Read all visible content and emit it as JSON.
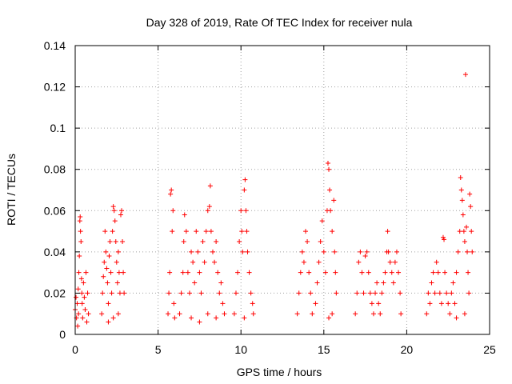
{
  "chart_data": {
    "type": "scatter",
    "title": "Day 328 of 2019, Rate Of TEC Index for receiver nula",
    "xlabel": "GPS time / hours",
    "ylabel": "ROTI / TECUs",
    "xlim": [
      0,
      25
    ],
    "ylim": [
      0,
      0.14
    ],
    "xticks": [
      0,
      5,
      10,
      15,
      20,
      25
    ],
    "xtick_labels": [
      "0",
      "5",
      "10",
      "15",
      "20",
      "25"
    ],
    "yticks": [
      0,
      0.02,
      0.04,
      0.06,
      0.08,
      0.1,
      0.12,
      0.14
    ],
    "ytick_labels": [
      "0",
      "0.02",
      "0.04",
      "0.06",
      "0.08",
      "0.1",
      "0.12",
      "0.14"
    ],
    "grid": true,
    "marker": "+",
    "color": "#ff0000",
    "series": [
      {
        "points": [
          [
            0.0,
            0.012
          ],
          [
            0.05,
            0.018
          ],
          [
            0.08,
            0.008
          ],
          [
            0.12,
            0.015
          ],
          [
            0.15,
            0.004
          ],
          [
            0.18,
            0.022
          ],
          [
            0.2,
            0.01
          ],
          [
            0.22,
            0.03
          ],
          [
            0.25,
            0.038
          ],
          [
            0.28,
            0.055
          ],
          [
            0.3,
            0.057
          ],
          [
            0.32,
            0.05
          ],
          [
            0.35,
            0.045
          ],
          [
            0.38,
            0.027
          ],
          [
            0.4,
            0.02
          ],
          [
            0.42,
            0.015
          ],
          [
            0.45,
            0.008
          ],
          [
            0.5,
            0.025
          ],
          [
            0.55,
            0.018
          ],
          [
            0.6,
            0.012
          ],
          [
            0.65,
            0.03
          ],
          [
            0.7,
            0.006
          ],
          [
            0.75,
            0.02
          ],
          [
            0.8,
            0.01
          ],
          [
            1.6,
            0.01
          ],
          [
            1.65,
            0.02
          ],
          [
            1.7,
            0.028
          ],
          [
            1.75,
            0.035
          ],
          [
            1.8,
            0.05
          ],
          [
            1.85,
            0.04
          ],
          [
            1.9,
            0.032
          ],
          [
            1.95,
            0.025
          ],
          [
            2.0,
            0.015
          ],
          [
            2.05,
            0.038
          ],
          [
            2.1,
            0.045
          ],
          [
            2.15,
            0.03
          ],
          [
            2.2,
            0.02
          ],
          [
            2.25,
            0.05
          ],
          [
            2.3,
            0.062
          ],
          [
            2.35,
            0.06
          ],
          [
            2.4,
            0.055
          ],
          [
            2.45,
            0.045
          ],
          [
            2.5,
            0.035
          ],
          [
            2.55,
            0.025
          ],
          [
            2.6,
            0.04
          ],
          [
            2.65,
            0.03
          ],
          [
            2.7,
            0.02
          ],
          [
            2.75,
            0.058
          ],
          [
            2.8,
            0.06
          ],
          [
            2.85,
            0.045
          ],
          [
            2.9,
            0.03
          ],
          [
            2.95,
            0.02
          ],
          [
            2.0,
            0.006
          ],
          [
            2.3,
            0.008
          ],
          [
            2.6,
            0.01
          ],
          [
            5.6,
            0.01
          ],
          [
            5.65,
            0.02
          ],
          [
            5.7,
            0.03
          ],
          [
            5.75,
            0.068
          ],
          [
            5.8,
            0.07
          ],
          [
            5.85,
            0.05
          ],
          [
            5.9,
            0.06
          ],
          [
            5.95,
            0.015
          ],
          [
            6.0,
            0.008
          ],
          [
            6.3,
            0.01
          ],
          [
            6.4,
            0.02
          ],
          [
            6.5,
            0.03
          ],
          [
            6.55,
            0.045
          ],
          [
            6.6,
            0.058
          ],
          [
            6.7,
            0.05
          ],
          [
            6.8,
            0.03
          ],
          [
            6.9,
            0.02
          ],
          [
            7.0,
            0.04
          ],
          [
            7.1,
            0.035
          ],
          [
            7.2,
            0.025
          ],
          [
            7.3,
            0.05
          ],
          [
            7.4,
            0.04
          ],
          [
            7.5,
            0.03
          ],
          [
            7.6,
            0.02
          ],
          [
            7.7,
            0.045
          ],
          [
            7.8,
            0.035
          ],
          [
            7.9,
            0.05
          ],
          [
            8.0,
            0.06
          ],
          [
            8.1,
            0.062
          ],
          [
            8.15,
            0.072
          ],
          [
            8.2,
            0.05
          ],
          [
            8.3,
            0.04
          ],
          [
            8.4,
            0.035
          ],
          [
            8.5,
            0.045
          ],
          [
            8.6,
            0.03
          ],
          [
            8.7,
            0.02
          ],
          [
            8.8,
            0.025
          ],
          [
            8.9,
            0.015
          ],
          [
            9.0,
            0.01
          ],
          [
            7.0,
            0.008
          ],
          [
            7.5,
            0.006
          ],
          [
            8.0,
            0.01
          ],
          [
            8.5,
            0.008
          ],
          [
            9.6,
            0.01
          ],
          [
            9.7,
            0.02
          ],
          [
            9.8,
            0.03
          ],
          [
            9.9,
            0.045
          ],
          [
            10.0,
            0.06
          ],
          [
            10.05,
            0.05
          ],
          [
            10.1,
            0.04
          ],
          [
            10.2,
            0.07
          ],
          [
            10.25,
            0.075
          ],
          [
            10.3,
            0.06
          ],
          [
            10.35,
            0.05
          ],
          [
            10.4,
            0.04
          ],
          [
            10.5,
            0.03
          ],
          [
            10.6,
            0.02
          ],
          [
            10.7,
            0.015
          ],
          [
            10.75,
            0.01
          ],
          [
            10.2,
            0.008
          ],
          [
            13.4,
            0.01
          ],
          [
            13.5,
            0.02
          ],
          [
            13.6,
            0.03
          ],
          [
            13.7,
            0.04
          ],
          [
            13.8,
            0.035
          ],
          [
            13.9,
            0.05
          ],
          [
            14.0,
            0.045
          ],
          [
            14.1,
            0.03
          ],
          [
            14.2,
            0.02
          ],
          [
            14.3,
            0.01
          ],
          [
            14.5,
            0.015
          ],
          [
            14.6,
            0.025
          ],
          [
            14.7,
            0.035
          ],
          [
            14.8,
            0.045
          ],
          [
            14.9,
            0.055
          ],
          [
            15.0,
            0.04
          ],
          [
            15.1,
            0.03
          ],
          [
            15.2,
            0.06
          ],
          [
            15.25,
            0.083
          ],
          [
            15.3,
            0.08
          ],
          [
            15.35,
            0.07
          ],
          [
            15.4,
            0.06
          ],
          [
            15.5,
            0.05
          ],
          [
            15.6,
            0.065
          ],
          [
            15.65,
            0.04
          ],
          [
            15.7,
            0.03
          ],
          [
            15.75,
            0.02
          ],
          [
            15.3,
            0.008
          ],
          [
            15.5,
            0.01
          ],
          [
            16.9,
            0.01
          ],
          [
            17.0,
            0.02
          ],
          [
            17.1,
            0.035
          ],
          [
            17.2,
            0.04
          ],
          [
            17.3,
            0.03
          ],
          [
            17.4,
            0.02
          ],
          [
            17.5,
            0.038
          ],
          [
            17.6,
            0.04
          ],
          [
            17.7,
            0.03
          ],
          [
            17.8,
            0.02
          ],
          [
            17.9,
            0.015
          ],
          [
            18.0,
            0.01
          ],
          [
            18.1,
            0.02
          ],
          [
            18.2,
            0.025
          ],
          [
            18.3,
            0.015
          ],
          [
            18.4,
            0.01
          ],
          [
            18.5,
            0.02
          ],
          [
            18.6,
            0.025
          ],
          [
            18.7,
            0.03
          ],
          [
            18.8,
            0.04
          ],
          [
            18.85,
            0.05
          ],
          [
            18.9,
            0.04
          ],
          [
            19.0,
            0.035
          ],
          [
            19.1,
            0.03
          ],
          [
            19.2,
            0.025
          ],
          [
            19.3,
            0.035
          ],
          [
            19.4,
            0.04
          ],
          [
            19.5,
            0.03
          ],
          [
            19.6,
            0.02
          ],
          [
            19.65,
            0.01
          ],
          [
            21.2,
            0.01
          ],
          [
            21.3,
            0.02
          ],
          [
            21.4,
            0.015
          ],
          [
            21.5,
            0.025
          ],
          [
            21.6,
            0.03
          ],
          [
            21.7,
            0.02
          ],
          [
            21.8,
            0.035
          ],
          [
            21.9,
            0.03
          ],
          [
            22.0,
            0.02
          ],
          [
            22.1,
            0.015
          ],
          [
            22.2,
            0.047
          ],
          [
            22.25,
            0.046
          ],
          [
            22.3,
            0.03
          ],
          [
            22.4,
            0.02
          ],
          [
            22.5,
            0.015
          ],
          [
            22.6,
            0.01
          ],
          [
            22.7,
            0.02
          ],
          [
            22.8,
            0.025
          ],
          [
            22.9,
            0.015
          ],
          [
            23.0,
            0.03
          ],
          [
            23.1,
            0.04
          ],
          [
            23.2,
            0.05
          ],
          [
            23.25,
            0.076
          ],
          [
            23.3,
            0.07
          ],
          [
            23.35,
            0.065
          ],
          [
            23.4,
            0.058
          ],
          [
            23.45,
            0.05
          ],
          [
            23.5,
            0.045
          ],
          [
            23.55,
            0.126
          ],
          [
            23.6,
            0.052
          ],
          [
            23.65,
            0.04
          ],
          [
            23.7,
            0.03
          ],
          [
            23.75,
            0.02
          ],
          [
            23.8,
            0.068
          ],
          [
            23.85,
            0.062
          ],
          [
            23.9,
            0.05
          ],
          [
            23.95,
            0.04
          ],
          [
            23.0,
            0.008
          ],
          [
            23.5,
            0.01
          ]
        ]
      }
    ]
  }
}
